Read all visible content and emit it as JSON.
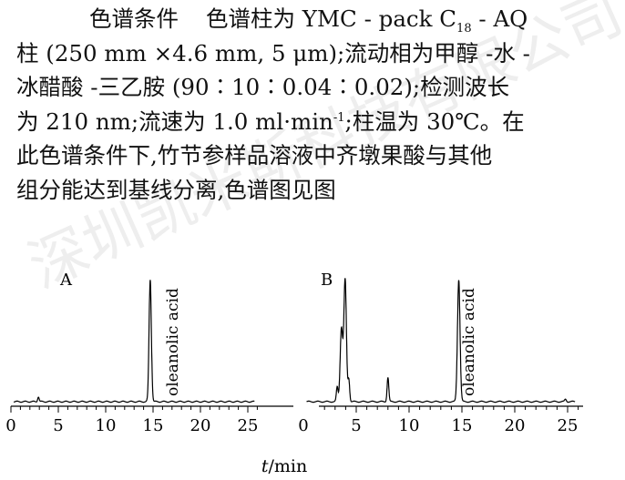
{
  "text": {
    "line1_a": "色谱条件",
    "line1_b": "色谱柱为 YMC - pack C",
    "line1_sub": "18",
    "line1_c": " - AQ",
    "line2": "柱 (250 mm ×4.6 mm, 5 μm);流动相为甲醇 -水 -",
    "line3": "冰醋酸 -三乙胺 (90∶10∶0.04∶0.02);检测波长",
    "line4_a": "为 210 nm;流速为 1.0 ml·min",
    "line4_sup": "-1",
    "line4_b": ";柱温为 30℃。在",
    "line5": "此色谱条件下,竹节参样品溶液中齐墩果酸与其他",
    "line6": "组分能达到基线分离,色谱图见图"
  },
  "watermark": "深圳凯米斯科技有限公司 www.ymcsepu.com",
  "chart_data": [
    {
      "type": "line",
      "panel_label": "A",
      "xlabel": "t/min",
      "x_ticks": [
        0,
        5,
        10,
        15,
        20,
        25
      ],
      "xlim": [
        0,
        26
      ],
      "annotation": "oleanolic acid",
      "peaks": [
        {
          "t": 2.9,
          "height": 0.04
        },
        {
          "t": 14.7,
          "height": 1.0
        }
      ]
    },
    {
      "type": "line",
      "panel_label": "B",
      "xlabel": "t/min",
      "x_ticks": [
        0,
        5,
        10,
        15,
        20,
        25
      ],
      "xlim": [
        0,
        26
      ],
      "annotation": "oleanolic acid",
      "peaks": [
        {
          "t": 3.2,
          "height": 0.12
        },
        {
          "t": 3.6,
          "height": 0.6
        },
        {
          "t": 3.95,
          "height": 1.0
        },
        {
          "t": 4.3,
          "height": 0.18
        },
        {
          "t": 8.0,
          "height": 0.2
        },
        {
          "t": 14.7,
          "height": 1.0
        },
        {
          "t": 24.8,
          "height": 0.02
        }
      ]
    }
  ]
}
